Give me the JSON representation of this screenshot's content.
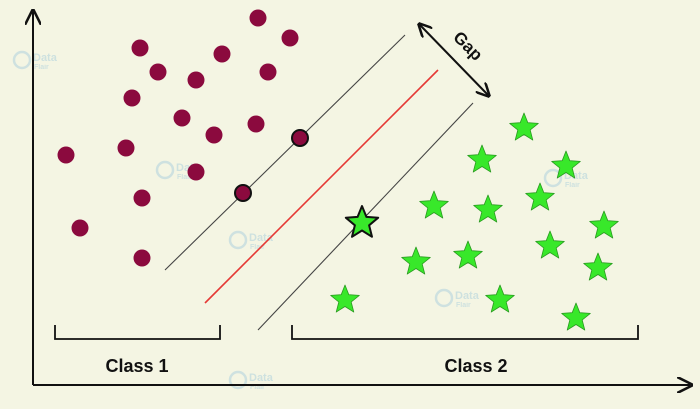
{
  "labels": {
    "gap": "Gap",
    "class1": "Class 1",
    "class2": "Class 2"
  },
  "watermark": {
    "line1": "Data",
    "line2": "Flair"
  },
  "colors": {
    "background": "#f4f5e3",
    "class1_point": "#8b0a3e",
    "class2_star": "#38e82a",
    "hyperplane": "#e53935",
    "margin_line": "#444444",
    "axis": "#111111"
  },
  "icons": {
    "class1_marker": "circle",
    "class2_marker": "star"
  }
}
